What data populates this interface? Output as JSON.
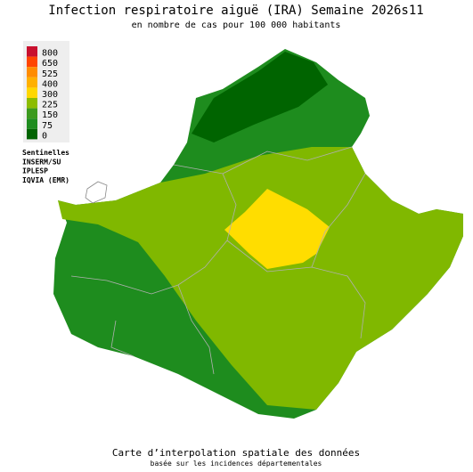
{
  "header": {
    "title": "Infection respiratoire aiguë (IRA) Semaine 2026s11",
    "subtitle": "en nombre de cas pour 100 000 habitants"
  },
  "legend": {
    "items": [
      {
        "value": 800,
        "color": "#c8102e"
      },
      {
        "value": 650,
        "color": "#ff4500"
      },
      {
        "value": 525,
        "color": "#ff8c00"
      },
      {
        "value": 400,
        "color": "#ffb000"
      },
      {
        "value": 300,
        "color": "#ffd700"
      },
      {
        "value": 225,
        "color": "#8cbc00"
      },
      {
        "value": 150,
        "color": "#3c9a1e"
      },
      {
        "value": 75,
        "color": "#1e8c1e"
      },
      {
        "value": 0,
        "color": "#006400"
      }
    ]
  },
  "sources": [
    "Sentinelles",
    "INSERM/SU",
    "IPLESP",
    "IQVIA (EMR)"
  ],
  "footer": {
    "line1": "Carte d’interpolation spatiale des données",
    "line2": "basée sur les incidences départementales"
  }
}
